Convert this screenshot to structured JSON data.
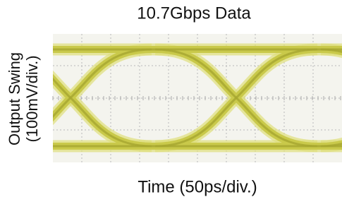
{
  "chart_data": {
    "type": "eye",
    "title": "10.7Gbps Data",
    "x_label": "Time (50ps/div.)",
    "y_label": [
      "Output Swing",
      "(100mV/div.)"
    ]
  }
}
